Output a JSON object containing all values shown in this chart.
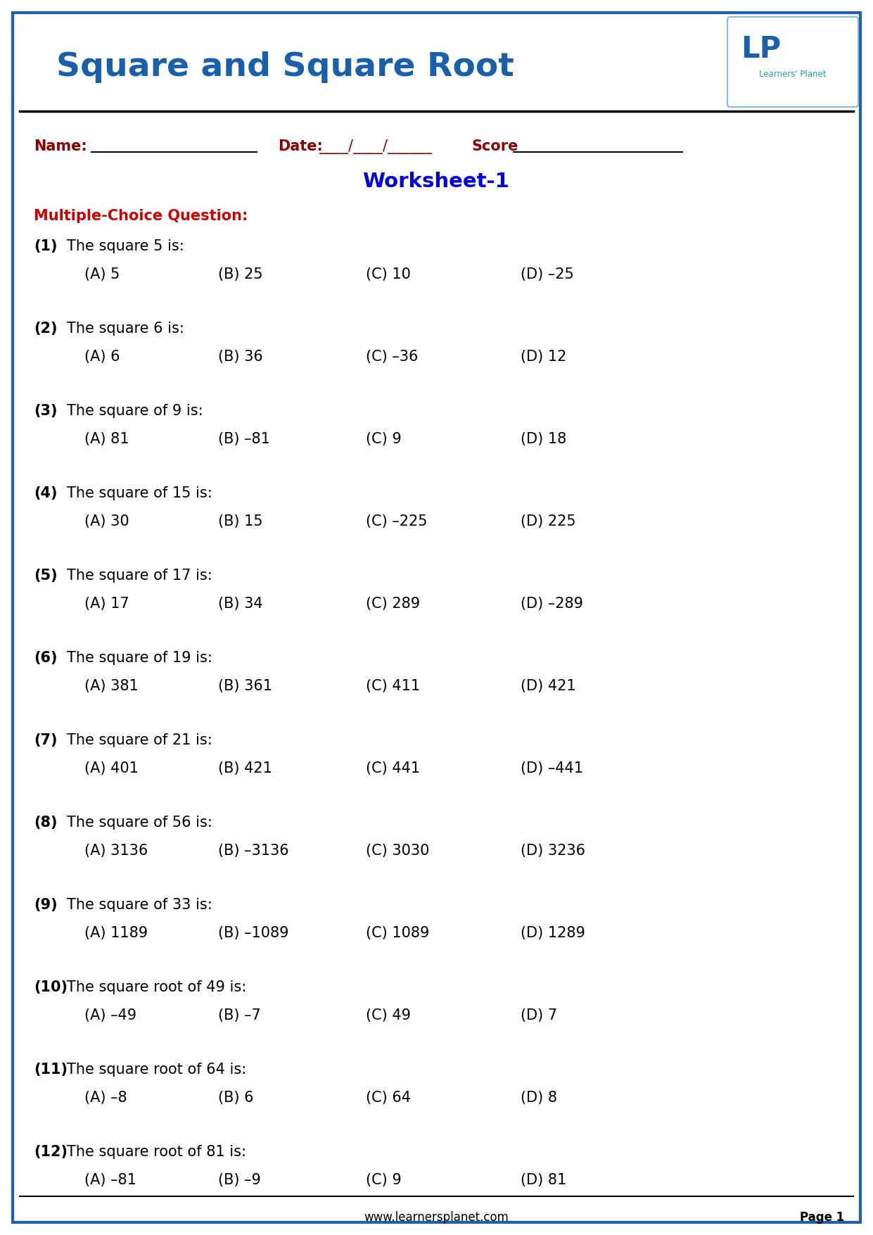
{
  "title": "Square and Square Root",
  "worksheet_label": "Worksheet-1",
  "mcq_label": "Multiple-Choice Question:",
  "name_label": "Name:",
  "date_label": "Date:",
  "score_label": "Score",
  "footer_url": "www.learnersplanet.com",
  "page_label": "Page 1",
  "questions": [
    {
      "num": "1",
      "text": "The square 5 is:",
      "options": [
        "(A) 5",
        "(B) 25",
        "(C) 10",
        "(D) –25"
      ]
    },
    {
      "num": "2",
      "text": "The square 6 is:",
      "options": [
        "(A) 6",
        "(B) 36",
        "(C) –36",
        "(D) 12"
      ]
    },
    {
      "num": "3",
      "text": "The square of 9 is:",
      "options": [
        "(A) 81",
        "(B) –81",
        "(C) 9",
        "(D) 18"
      ]
    },
    {
      "num": "4",
      "text": "The square of 15 is:",
      "options": [
        "(A) 30",
        "(B) 15",
        "(C) –225",
        "(D) 225"
      ]
    },
    {
      "num": "5",
      "text": "The square of 17 is:",
      "options": [
        "(A) 17",
        "(B) 34",
        "(C) 289",
        "(D) –289"
      ]
    },
    {
      "num": "6",
      "text": "The square of 19 is:",
      "options": [
        "(A) 381",
        "(B) 361",
        "(C) 411",
        "(D) 421"
      ]
    },
    {
      "num": "7",
      "text": "The square of 21 is:",
      "options": [
        "(A) 401",
        "(B) 421",
        "(C) 441",
        "(D) –441"
      ]
    },
    {
      "num": "8",
      "text": "The square of 56 is:",
      "options": [
        "(A) 3136",
        "(B) –3136",
        "(C) 3030",
        "(D) 3236"
      ]
    },
    {
      "num": "9",
      "text": "The square of 33 is:",
      "options": [
        "(A) 1189",
        "(B) –1089",
        "(C) 1089",
        "(D) 1289"
      ]
    },
    {
      "num": "10",
      "text": "The square root of 49 is:",
      "options": [
        "(A) –49",
        "(B) –7",
        "(C) 49",
        "(D) 7"
      ]
    },
    {
      "num": "11",
      "text": "The square root of 64 is:",
      "options": [
        "(A) –8",
        "(B) 6",
        "(C) 64",
        "(D) 8"
      ]
    },
    {
      "num": "12",
      "text": "The square root of 81 is:",
      "options": [
        "(A) –81",
        "(B) –9",
        "(C) 9",
        "(D) 81"
      ]
    }
  ],
  "border_color": "#2060aa",
  "title_color": "#1a5faa",
  "mcq_color": "#cc0000",
  "worksheet_color": "#0000dd",
  "name_date_color": "#8b0000",
  "question_color": "#000000",
  "watermark_color": "#c8e4f0",
  "bg_color": "#ffffff",
  "logo_text_color": "#1a5faa",
  "logo_sub_color": "#20a0a0"
}
